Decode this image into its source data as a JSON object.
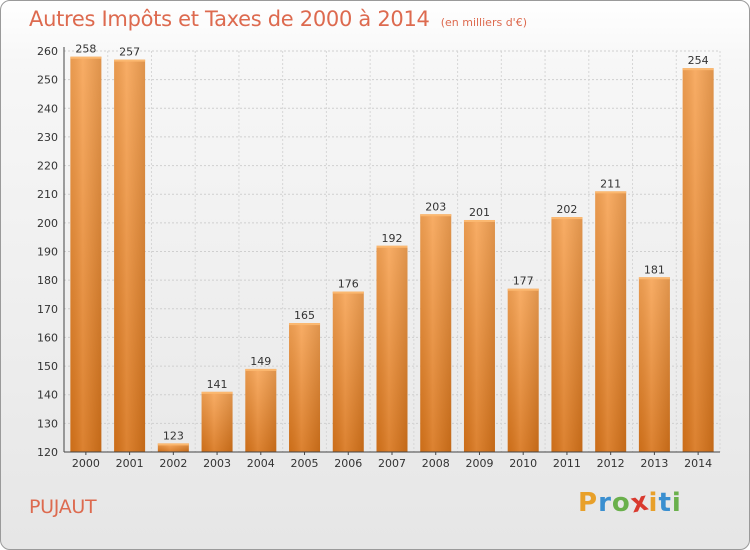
{
  "chart_data": {
    "type": "bar",
    "title": "Autres Impôts et Taxes de 2000 à 2014",
    "subtitle": "(en milliers d'€)",
    "categories": [
      "2000",
      "2001",
      "2002",
      "2003",
      "2004",
      "2005",
      "2006",
      "2007",
      "2008",
      "2009",
      "2010",
      "2011",
      "2012",
      "2013",
      "2014"
    ],
    "values": [
      258,
      257,
      123,
      141,
      149,
      165,
      176,
      192,
      203,
      201,
      177,
      202,
      211,
      181,
      254
    ],
    "ylim": [
      120,
      260
    ],
    "yticks": [
      120,
      130,
      140,
      150,
      160,
      170,
      180,
      190,
      200,
      210,
      220,
      230,
      240,
      250,
      260
    ],
    "grid": true,
    "bar_color": "#f0923a",
    "xlabel": "",
    "ylabel": ""
  },
  "location": "PUJAUT",
  "logo": {
    "letters": [
      "P",
      "r",
      "o",
      "x",
      "i",
      "t",
      "i"
    ],
    "colors": [
      "#e8a02a",
      "#3a8fd0",
      "#6ab04c",
      "#d93a2f",
      "#e8a02a",
      "#3a8fd0",
      "#6ab04c"
    ]
  }
}
